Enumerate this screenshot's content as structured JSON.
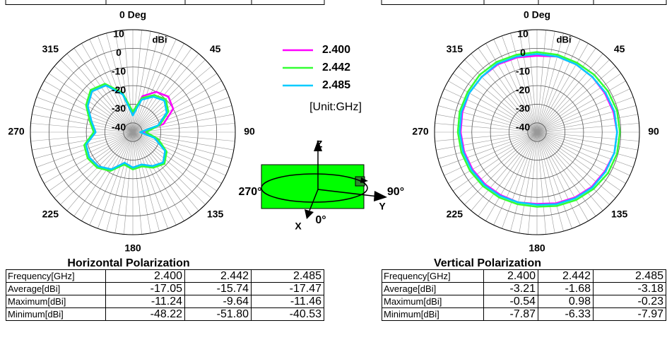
{
  "chart_data": [
    {
      "type": "polar",
      "r_unit": "dBi",
      "rlim": [
        -45,
        10
      ],
      "rticks": [
        10,
        0,
        -10,
        -20,
        -30,
        -40
      ],
      "angle_ticks": [
        {
          "value": 0,
          "label": "0 Deg"
        },
        45,
        90,
        135,
        180,
        225,
        270,
        315
      ],
      "angle_grid_step": 5,
      "angles": [
        0,
        15,
        30,
        45,
        60,
        75,
        90,
        105,
        120,
        135,
        150,
        165,
        180,
        195,
        210,
        225,
        240,
        255,
        270,
        285,
        300,
        315,
        330,
        345
      ],
      "series": [
        {
          "name": "2.400",
          "color": "#ff00ff",
          "values": [
            -35,
            -25,
            -20,
            -18,
            -20,
            -28,
            -40,
            -32,
            -25,
            -22,
            -24,
            -27,
            -26,
            -28,
            -22,
            -19,
            -18,
            -19,
            -25,
            -22,
            -17,
            -14,
            -16,
            -24
          ]
        },
        {
          "name": "2.442",
          "color": "#33ff33",
          "values": [
            -34,
            -26,
            -22,
            -20,
            -23,
            -30,
            -38,
            -31,
            -24,
            -21,
            -23,
            -26,
            -25,
            -27,
            -21,
            -18,
            -17,
            -18,
            -24,
            -21,
            -16,
            -13,
            -15,
            -23
          ]
        },
        {
          "name": "2.485",
          "color": "#00ccff",
          "values": [
            -36,
            -27,
            -23,
            -21,
            -24,
            -31,
            -41,
            -33,
            -25,
            -22,
            -24,
            -27,
            -26,
            -28,
            -22,
            -19,
            -18,
            -19,
            -25,
            -22,
            -17,
            -14,
            -16,
            -24
          ]
        }
      ]
    },
    {
      "type": "polar",
      "r_unit": "dBi",
      "rlim": [
        -45,
        10
      ],
      "rticks": [
        10,
        0,
        -10,
        -20,
        -30,
        -40
      ],
      "angle_ticks": [
        {
          "value": 0,
          "label": "0 Deg"
        },
        45,
        90,
        135,
        180,
        225,
        270,
        315
      ],
      "angle_grid_step": 5,
      "angles": [
        0,
        15,
        30,
        45,
        60,
        75,
        90,
        105,
        120,
        135,
        150,
        165,
        180,
        195,
        210,
        225,
        240,
        255,
        270,
        285,
        300,
        315,
        330,
        345
      ],
      "series": [
        {
          "color": "#ff00ff",
          "values": [
            -4,
            -3,
            -3,
            -3,
            -3,
            -2.5,
            -2,
            -2,
            -3,
            -3.5,
            -4.5,
            -5.5,
            -6.5,
            -6,
            -6,
            -5.5,
            -5,
            -4.5,
            -4,
            -3.5,
            -3,
            -3,
            -3,
            -3.5
          ]
        },
        {
          "color": "#33ff33",
          "values": [
            -2,
            -2,
            -2,
            -1.5,
            -1,
            -0.5,
            -0.5,
            -0.5,
            -1,
            -2,
            -3,
            -4,
            -5,
            -5,
            -4.5,
            -4,
            -3.5,
            -3,
            -2.5,
            -2,
            -2,
            -1.5,
            -1.5,
            -2
          ]
        },
        {
          "color": "#00ccff",
          "values": [
            -3,
            -3,
            -3,
            -3,
            -2.5,
            -2,
            -2,
            -2,
            -2.5,
            -3,
            -4,
            -5,
            -6,
            -6,
            -5.5,
            -5,
            -4.5,
            -4,
            -3.5,
            -3,
            -3,
            -3,
            -2.5,
            -3
          ]
        }
      ]
    }
  ],
  "legend": {
    "note": "[Unit:GHz]"
  },
  "diagram": {
    "z": "Z",
    "y": "Y",
    "x": "X",
    "left": "270°",
    "right": "90°",
    "front": "0°"
  },
  "tables": [
    {
      "title": "Horizontal Polarization",
      "rows": [
        [
          "Frequency[GHz]",
          "2.400",
          "2.442",
          "2.485"
        ],
        [
          "Average[dBi]",
          "-17.05",
          "-15.74",
          "-17.47"
        ],
        [
          "Maximum[dBi]",
          "-11.24",
          "-9.64",
          "-11.46"
        ],
        [
          "Minimum[dBi]",
          "-48.22",
          "-51.80",
          "-40.53"
        ]
      ]
    },
    {
      "title": "Vertical Polarization",
      "rows": [
        [
          "Frequency[GHz]",
          "2.400",
          "2.442",
          "2.485"
        ],
        [
          "Average[dBi]",
          "-3.21",
          "-1.68",
          "-3.18"
        ],
        [
          "Maximum[dBi]",
          "-0.54",
          "0.98",
          "-0.23"
        ],
        [
          "Minimum[dBi]",
          "-7.87",
          "-6.33",
          "-7.97"
        ]
      ]
    }
  ]
}
